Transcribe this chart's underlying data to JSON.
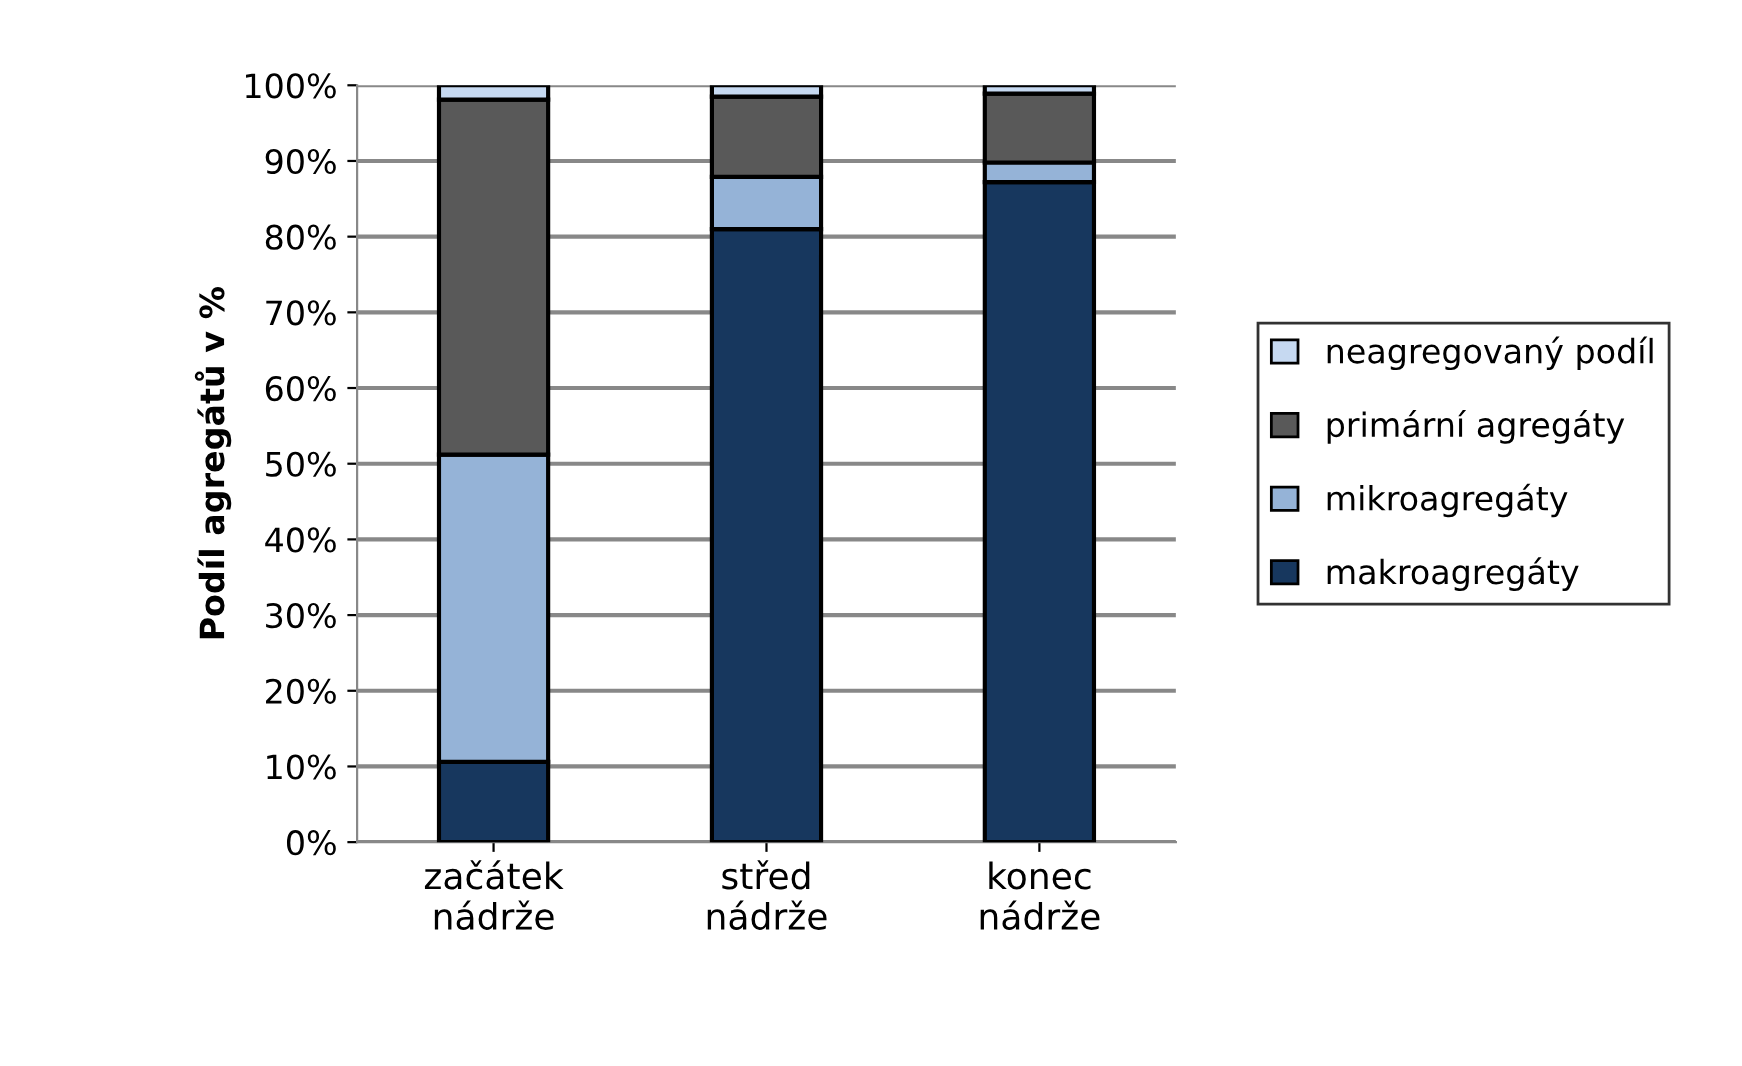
{
  "chart_data": {
    "type": "bar",
    "stacked": true,
    "ylabel": "Podíl agregátů v %",
    "categories": [
      "začátek\nnádrže",
      "střed\nnádrže",
      "konec\nnádrže"
    ],
    "series": [
      {
        "name": "makroagregáty",
        "color": "#17375e",
        "values": [
          10.6,
          81.0,
          87.2
        ]
      },
      {
        "name": "mikroagregáty",
        "color": "#95b3d7",
        "values": [
          40.6,
          6.9,
          2.6
        ]
      },
      {
        "name": "primární agregáty",
        "color": "#595959",
        "values": [
          46.9,
          10.6,
          9.1
        ]
      },
      {
        "name": "neagregovaný podíl",
        "color": "#c6d9f1",
        "values": [
          1.9,
          1.5,
          1.1
        ]
      }
    ],
    "ylim": [
      0,
      100
    ],
    "yticks": [
      {
        "value": 0,
        "label": "0%"
      },
      {
        "value": 10,
        "label": "10%"
      },
      {
        "value": 20,
        "label": "20%"
      },
      {
        "value": 30,
        "label": "30%"
      },
      {
        "value": 40,
        "label": "40%"
      },
      {
        "value": 50,
        "label": "50%"
      },
      {
        "value": 60,
        "label": "60%"
      },
      {
        "value": 70,
        "label": "70%"
      },
      {
        "value": 80,
        "label": "80%"
      },
      {
        "value": 90,
        "label": "90%"
      },
      {
        "value": 100,
        "label": "100%"
      }
    ],
    "grid": "y",
    "legend": "right"
  }
}
